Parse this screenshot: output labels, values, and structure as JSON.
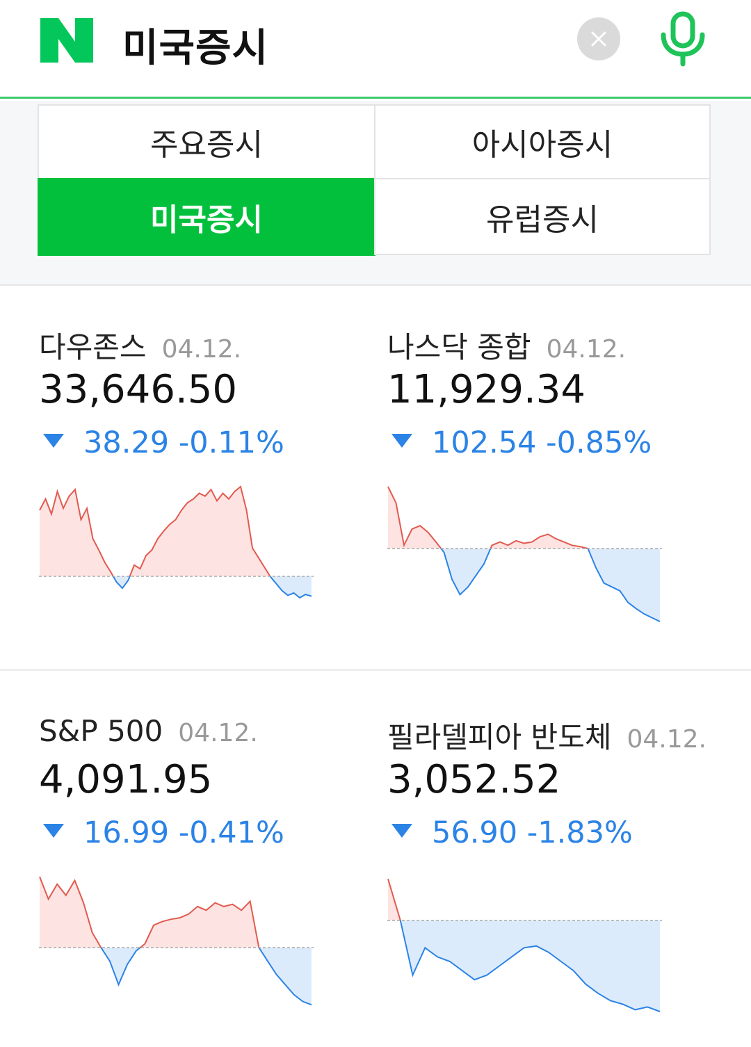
{
  "header": {
    "logo_letter": "N",
    "search_query": "미국증시"
  },
  "colors": {
    "brand_green": "#03c03c",
    "up_red": "#e25a4f",
    "down_blue": "#2b83e6"
  },
  "tabs": [
    {
      "label": "주요증시",
      "active": false
    },
    {
      "label": "아시아증시",
      "active": false
    },
    {
      "label": "미국증시",
      "active": true
    },
    {
      "label": "유럽증시",
      "active": false
    }
  ],
  "indices": [
    {
      "name": "다우존스",
      "date": "04.12.",
      "value": "33,646.50",
      "change": "38.29 -0.11%",
      "direction": "down",
      "spark": [
        0.7,
        0.82,
        0.66,
        0.9,
        0.72,
        0.85,
        0.92,
        0.6,
        0.72,
        0.4,
        0.28,
        0.15,
        0.05,
        -0.12,
        -0.25,
        -0.08,
        0.12,
        0.08,
        0.22,
        0.28,
        0.4,
        0.48,
        0.55,
        0.6,
        0.7,
        0.78,
        0.82,
        0.88,
        0.85,
        0.92,
        0.8,
        0.88,
        0.82,
        0.9,
        0.95,
        0.7,
        0.3,
        0.2,
        0.1,
        0.0,
        -0.15,
        -0.3,
        -0.4,
        -0.35,
        -0.45,
        -0.38,
        -0.42
      ]
    },
    {
      "name": "나스닥 종합",
      "date": "04.12.",
      "value": "11,929.34",
      "change": "102.54 -0.85%",
      "direction": "down",
      "spark": [
        0.95,
        0.7,
        0.05,
        0.3,
        0.35,
        0.25,
        0.1,
        -0.05,
        -0.4,
        -0.6,
        -0.5,
        -0.35,
        -0.2,
        0.05,
        0.1,
        0.05,
        0.12,
        0.08,
        0.1,
        0.18,
        0.22,
        0.15,
        0.1,
        0.05,
        0.03,
        0.0,
        -0.25,
        -0.45,
        -0.5,
        -0.55,
        -0.7,
        -0.78,
        -0.85,
        -0.9,
        -0.95
      ]
    },
    {
      "name": "S&P 500",
      "date": "04.12.",
      "value": "4,091.95",
      "change": "16.99 -0.41%",
      "direction": "down",
      "spark": [
        0.95,
        0.65,
        0.85,
        0.7,
        0.9,
        0.6,
        0.2,
        0.0,
        -0.2,
        -0.55,
        -0.25,
        -0.05,
        0.05,
        0.3,
        0.35,
        0.38,
        0.4,
        0.45,
        0.55,
        0.5,
        0.6,
        0.55,
        0.58,
        0.5,
        0.62,
        0.0,
        -0.2,
        -0.4,
        -0.55,
        -0.7,
        -0.8,
        -0.85
      ]
    },
    {
      "name": "필라델피아 반도체",
      "date": "04.12.",
      "value": "3,052.52",
      "change": "56.90 -1.83%",
      "direction": "down",
      "spark": [
        0.95,
        0.0,
        -0.6,
        -0.3,
        -0.4,
        -0.45,
        -0.55,
        -0.65,
        -0.6,
        -0.5,
        -0.4,
        -0.3,
        -0.28,
        -0.35,
        -0.45,
        -0.55,
        -0.7,
        -0.8,
        -0.88,
        -0.92,
        -0.98,
        -0.95,
        -1.0
      ]
    }
  ]
}
